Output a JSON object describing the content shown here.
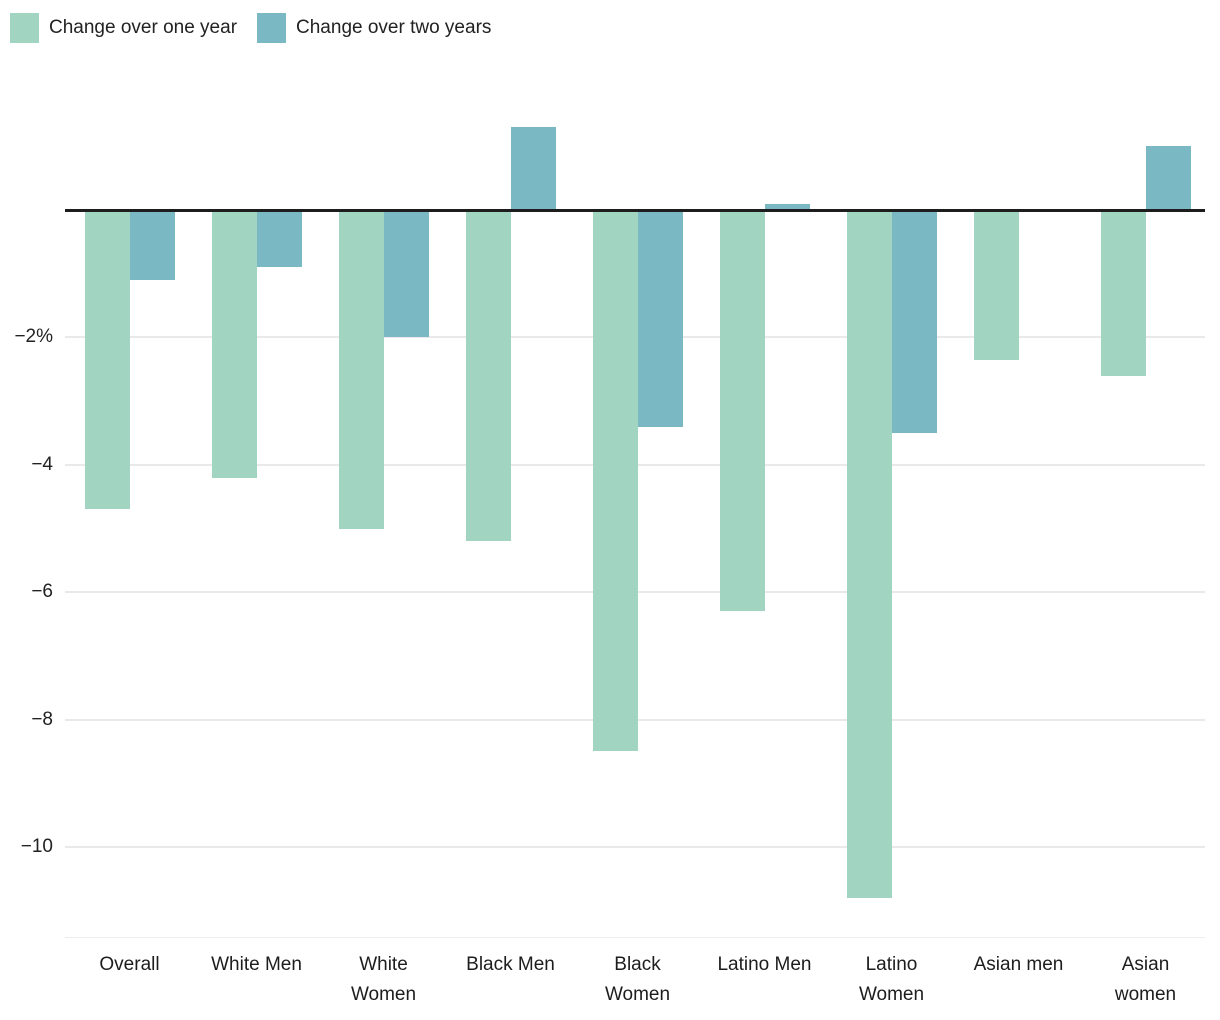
{
  "legend": {
    "items": [
      {
        "label": "Change over one year",
        "color": "#a2d5c1"
      },
      {
        "label": "Change over two years",
        "color": "#7ab9c4"
      }
    ]
  },
  "chart_data": {
    "type": "bar",
    "categories": [
      "Overall",
      "White Men",
      "White\nWomen",
      "Black Men",
      "Black\nWomen",
      "Latino Men",
      "Latino\nWomen",
      "Asian men",
      "Asian\nwomen"
    ],
    "series": [
      {
        "name": "Change over one year",
        "color": "#a2d5c1",
        "values": [
          -4.7,
          -4.2,
          -5.0,
          -5.2,
          -8.5,
          -6.3,
          -10.8,
          -2.35,
          -2.6
        ]
      },
      {
        "name": "Change over two years",
        "color": "#7ab9c4",
        "values": [
          -1.1,
          -0.9,
          -2.0,
          1.3,
          -3.4,
          0.1,
          -3.5,
          0,
          1.0
        ]
      }
    ],
    "y_ticks": [
      {
        "value": -2,
        "label": "−2%"
      },
      {
        "value": -4,
        "label": "−4"
      },
      {
        "value": -6,
        "label": "−6"
      },
      {
        "value": -8,
        "label": "−8"
      },
      {
        "value": -10,
        "label": "−10"
      }
    ],
    "ylabel": "",
    "xlabel": "",
    "ylim": [
      -11.6,
      1.7
    ],
    "grid": true,
    "legend_position": "top-left",
    "axis_colors": {
      "zero_line": "#1d1d1d",
      "gridline": "#e9e9e9",
      "text": "#1f1f1f"
    }
  }
}
